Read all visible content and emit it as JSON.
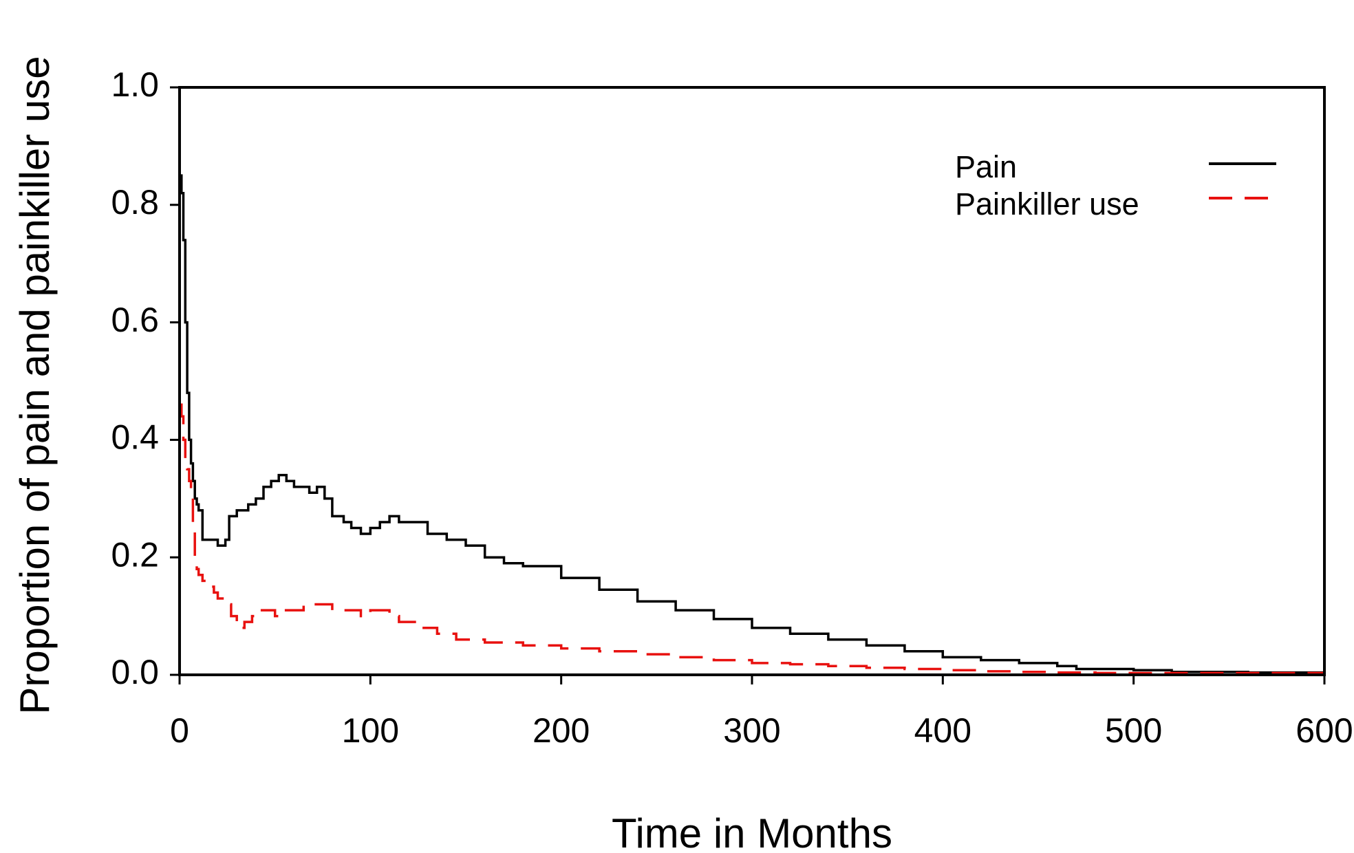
{
  "chart_data": {
    "type": "line",
    "title": "",
    "xlabel": "Time in Months",
    "ylabel": "Proportion of pain and painkiller use",
    "xlim": [
      0,
      600
    ],
    "ylim": [
      0,
      1.0
    ],
    "x_ticks": [
      0,
      100,
      200,
      300,
      400,
      500,
      600
    ],
    "x_tick_labels": [
      "0",
      "100",
      "200",
      "300",
      "400",
      "500",
      "600"
    ],
    "y_ticks": [
      0.0,
      0.2,
      0.4,
      0.6,
      0.8,
      1.0
    ],
    "y_tick_labels": [
      "0.0",
      "0.2",
      "0.4",
      "0.6",
      "0.8",
      "1.0"
    ],
    "grid": false,
    "legend_position": "top-right",
    "colors": {
      "pain": "#000000",
      "painkiller": "#e8110f",
      "axes": "#000000"
    },
    "series": [
      {
        "name": "Pain",
        "style": "solid",
        "color": "#000000",
        "x": [
          0,
          1,
          2,
          3,
          4,
          5,
          6,
          7,
          8,
          9,
          10,
          12,
          14,
          16,
          20,
          24,
          26,
          28,
          30,
          33,
          36,
          40,
          44,
          48,
          52,
          56,
          60,
          64,
          68,
          72,
          76,
          80,
          86,
          90,
          95,
          100,
          105,
          110,
          115,
          120,
          130,
          140,
          150,
          160,
          170,
          180,
          200,
          220,
          240,
          260,
          280,
          300,
          320,
          340,
          360,
          380,
          400,
          420,
          440,
          460,
          470,
          500,
          520,
          560,
          600
        ],
        "y": [
          0.85,
          0.82,
          0.74,
          0.6,
          0.48,
          0.4,
          0.36,
          0.33,
          0.3,
          0.29,
          0.28,
          0.23,
          0.23,
          0.23,
          0.22,
          0.23,
          0.27,
          0.27,
          0.28,
          0.28,
          0.29,
          0.3,
          0.32,
          0.33,
          0.34,
          0.33,
          0.32,
          0.32,
          0.31,
          0.32,
          0.3,
          0.27,
          0.26,
          0.25,
          0.24,
          0.25,
          0.26,
          0.27,
          0.26,
          0.26,
          0.24,
          0.23,
          0.22,
          0.2,
          0.19,
          0.185,
          0.165,
          0.145,
          0.125,
          0.11,
          0.095,
          0.08,
          0.07,
          0.06,
          0.05,
          0.04,
          0.03,
          0.025,
          0.02,
          0.015,
          0.01,
          0.008,
          0.005,
          0.004,
          0.004
        ]
      },
      {
        "name": "Painkiller use",
        "style": "dashed",
        "color": "#e8110f",
        "x": [
          0,
          1,
          2,
          3,
          4,
          5,
          6,
          7,
          8,
          9,
          10,
          12,
          15,
          18,
          20,
          24,
          27,
          30,
          34,
          38,
          42,
          46,
          50,
          55,
          60,
          65,
          70,
          75,
          80,
          85,
          90,
          95,
          100,
          105,
          110,
          115,
          125,
          135,
          145,
          160,
          180,
          200,
          220,
          240,
          260,
          280,
          300,
          320,
          340,
          360,
          380,
          400,
          420,
          440,
          460,
          480,
          500,
          540,
          600
        ],
        "y": [
          0.46,
          0.44,
          0.4,
          0.36,
          0.35,
          0.33,
          0.3,
          0.25,
          0.2,
          0.18,
          0.17,
          0.16,
          0.15,
          0.14,
          0.13,
          0.12,
          0.1,
          0.08,
          0.09,
          0.1,
          0.11,
          0.11,
          0.1,
          0.11,
          0.11,
          0.12,
          0.12,
          0.12,
          0.11,
          0.11,
          0.11,
          0.1,
          0.11,
          0.11,
          0.1,
          0.09,
          0.08,
          0.07,
          0.06,
          0.055,
          0.05,
          0.045,
          0.04,
          0.035,
          0.03,
          0.025,
          0.02,
          0.018,
          0.015,
          0.012,
          0.01,
          0.008,
          0.006,
          0.005,
          0.004,
          0.003,
          0.003,
          0.003,
          0.002
        ]
      }
    ]
  }
}
